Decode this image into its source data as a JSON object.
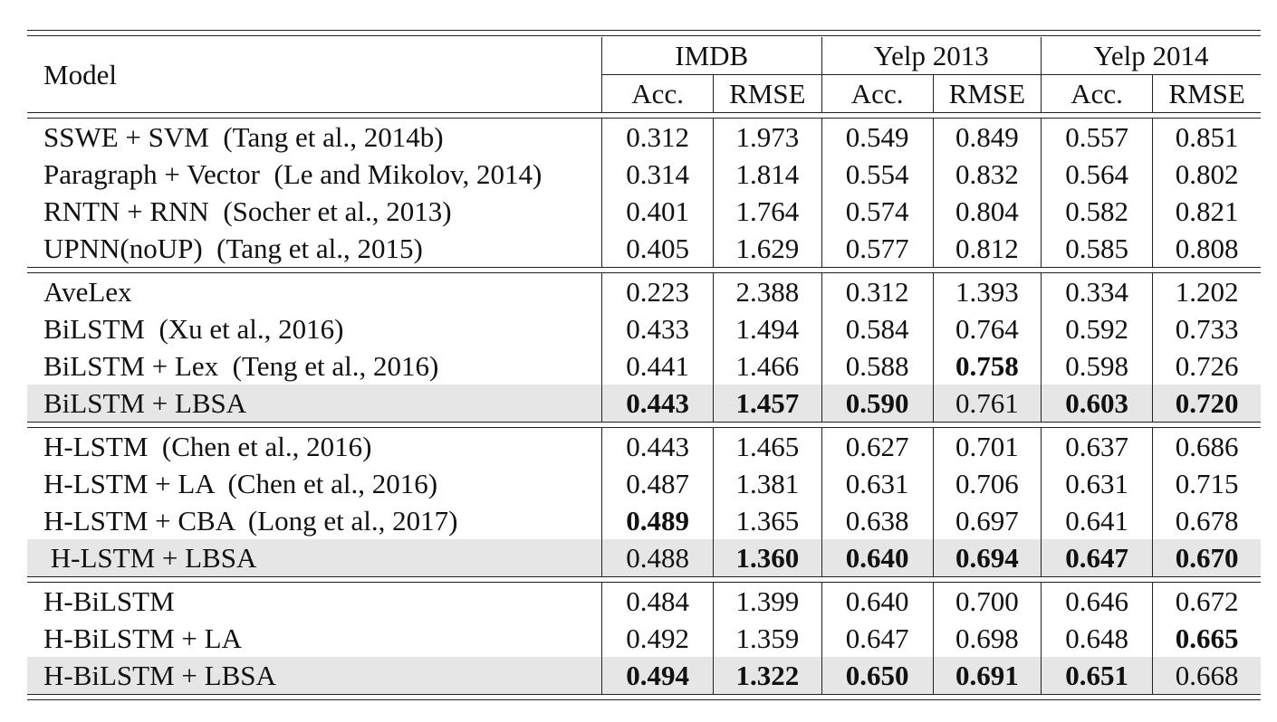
{
  "header": {
    "model": "Model",
    "datasets": [
      "IMDB",
      "Yelp 2013",
      "Yelp 2014"
    ],
    "metrics": [
      "Acc.",
      "RMSE",
      "Acc.",
      "RMSE",
      "Acc.",
      "RMSE"
    ]
  },
  "groups": [
    {
      "rows": [
        {
          "model": "SSWE + SVM  (Tang et al., 2014b)",
          "values": [
            "0.312",
            "1.973",
            "0.549",
            "0.849",
            "0.557",
            "0.851"
          ],
          "bold": [
            false,
            false,
            false,
            false,
            false,
            false
          ],
          "highlight": false
        },
        {
          "model": "Paragraph + Vector  (Le and Mikolov, 2014)",
          "values": [
            "0.314",
            "1.814",
            "0.554",
            "0.832",
            "0.564",
            "0.802"
          ],
          "bold": [
            false,
            false,
            false,
            false,
            false,
            false
          ],
          "highlight": false
        },
        {
          "model": "RNTN + RNN  (Socher et al., 2013)",
          "values": [
            "0.401",
            "1.764",
            "0.574",
            "0.804",
            "0.582",
            "0.821"
          ],
          "bold": [
            false,
            false,
            false,
            false,
            false,
            false
          ],
          "highlight": false
        },
        {
          "model": "UPNN(noUP)  (Tang et al., 2015)",
          "values": [
            "0.405",
            "1.629",
            "0.577",
            "0.812",
            "0.585",
            "0.808"
          ],
          "bold": [
            false,
            false,
            false,
            false,
            false,
            false
          ],
          "highlight": false
        }
      ]
    },
    {
      "rows": [
        {
          "model": "AveLex",
          "values": [
            "0.223",
            "2.388",
            "0.312",
            "1.393",
            "0.334",
            "1.202"
          ],
          "bold": [
            false,
            false,
            false,
            false,
            false,
            false
          ],
          "highlight": false
        },
        {
          "model": "BiLSTM  (Xu et al., 2016)",
          "values": [
            "0.433",
            "1.494",
            "0.584",
            "0.764",
            "0.592",
            "0.733"
          ],
          "bold": [
            false,
            false,
            false,
            false,
            false,
            false
          ],
          "highlight": false
        },
        {
          "model": "BiLSTM + Lex  (Teng et al., 2016)",
          "values": [
            "0.441",
            "1.466",
            "0.588",
            "0.758",
            "0.598",
            "0.726"
          ],
          "bold": [
            false,
            false,
            false,
            true,
            false,
            false
          ],
          "highlight": false
        },
        {
          "model": "BiLSTM + LBSA",
          "values": [
            "0.443",
            "1.457",
            "0.590",
            "0.761",
            "0.603",
            "0.720"
          ],
          "bold": [
            true,
            true,
            true,
            false,
            true,
            true
          ],
          "highlight": true
        }
      ]
    },
    {
      "rows": [
        {
          "model": "H-LSTM  (Chen et al., 2016)",
          "values": [
            "0.443",
            "1.465",
            "0.627",
            "0.701",
            "0.637",
            "0.686"
          ],
          "bold": [
            false,
            false,
            false,
            false,
            false,
            false
          ],
          "highlight": false
        },
        {
          "model": "H-LSTM + LA  (Chen et al., 2016)",
          "values": [
            "0.487",
            "1.381",
            "0.631",
            "0.706",
            "0.631",
            "0.715"
          ],
          "bold": [
            false,
            false,
            false,
            false,
            false,
            false
          ],
          "highlight": false
        },
        {
          "model": "H-LSTM + CBA  (Long et al., 2017)",
          "values": [
            "0.489",
            "1.365",
            "0.638",
            "0.697",
            "0.641",
            "0.678"
          ],
          "bold": [
            true,
            false,
            false,
            false,
            false,
            false
          ],
          "highlight": false
        },
        {
          "model": " H-LSTM + LBSA",
          "values": [
            "0.488",
            "1.360",
            "0.640",
            "0.694",
            "0.647",
            "0.670"
          ],
          "bold": [
            false,
            true,
            true,
            true,
            true,
            true
          ],
          "highlight": true
        }
      ]
    },
    {
      "rows": [
        {
          "model": "H-BiLSTM",
          "values": [
            "0.484",
            "1.399",
            "0.640",
            "0.700",
            "0.646",
            "0.672"
          ],
          "bold": [
            false,
            false,
            false,
            false,
            false,
            false
          ],
          "highlight": false
        },
        {
          "model": "H-BiLSTM + LA",
          "values": [
            "0.492",
            "1.359",
            "0.647",
            "0.698",
            "0.648",
            "0.665"
          ],
          "bold": [
            false,
            false,
            false,
            false,
            false,
            true
          ],
          "highlight": false
        },
        {
          "model": "H-BiLSTM + LBSA",
          "values": [
            "0.494",
            "1.322",
            "0.650",
            "0.691",
            "0.651",
            "0.668"
          ],
          "bold": [
            true,
            true,
            true,
            true,
            true,
            false
          ],
          "highlight": true
        }
      ]
    }
  ]
}
